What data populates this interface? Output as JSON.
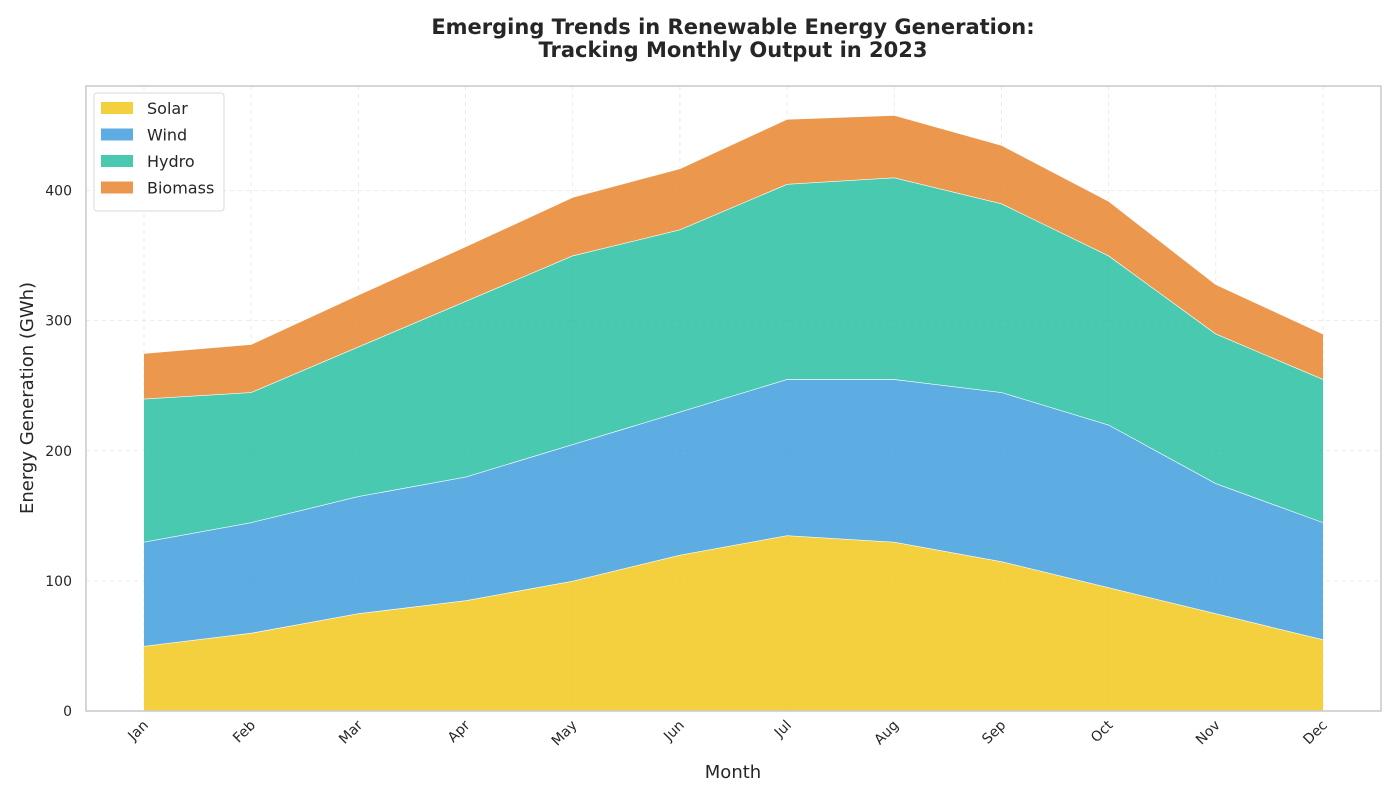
{
  "chart_data": {
    "type": "area",
    "stacked": true,
    "title_line1": "Emerging Trends in Renewable Energy Generation:",
    "title_line2": "Tracking Monthly Output in 2023",
    "xlabel": "Month",
    "ylabel": "Energy Generation (GWh)",
    "categories": [
      "Jan",
      "Feb",
      "Mar",
      "Apr",
      "May",
      "Jun",
      "Jul",
      "Aug",
      "Sep",
      "Oct",
      "Nov",
      "Dec"
    ],
    "ylim": [
      0,
      480
    ],
    "yticks": [
      0,
      100,
      200,
      300,
      400
    ],
    "grid": true,
    "legend_position": "top-left",
    "series": [
      {
        "name": "Solar",
        "color": "#f1c40f",
        "values": [
          50,
          60,
          75,
          85,
          100,
          120,
          135,
          130,
          115,
          95,
          75,
          55
        ]
      },
      {
        "name": "Wind",
        "color": "#3498db",
        "values": [
          80,
          85,
          90,
          95,
          105,
          110,
          120,
          125,
          130,
          125,
          100,
          90
        ]
      },
      {
        "name": "Hydro",
        "color": "#1abc9c",
        "values": [
          110,
          100,
          115,
          135,
          145,
          140,
          150,
          155,
          145,
          130,
          115,
          110
        ]
      },
      {
        "name": "Biomass",
        "color": "#e67e22",
        "values": [
          35,
          37,
          40,
          42,
          45,
          47,
          50,
          48,
          45,
          42,
          38,
          35
        ]
      }
    ]
  }
}
